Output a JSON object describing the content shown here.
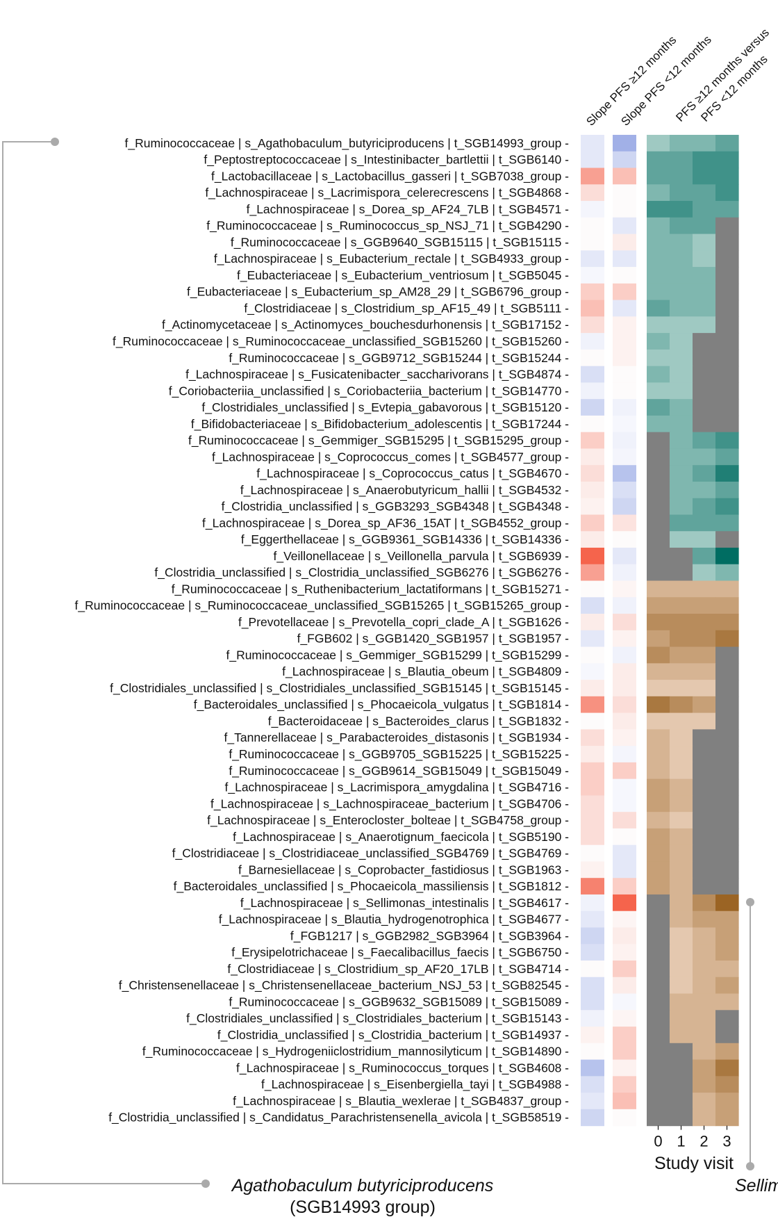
{
  "chart_data": {
    "type": "heatmap",
    "column_headers": {
      "slope_high": "Slope PFS ≥12 months",
      "slope_low": "Slope PFS <12 months",
      "comparison_line1": "PFS ≥12 months versus",
      "comparison_line2": "PFS <12 months"
    },
    "xlabel": "Study visit",
    "visits": [
      "0",
      "1",
      "2",
      "3"
    ],
    "missing_color": "#808080",
    "callouts": {
      "left_species": "Agathobaculum butyriciproducens",
      "left_group": "(SGB14993 group)",
      "right_species": "Sellimonas intestinalis"
    },
    "rows": [
      {
        "label": "f_Ruminococcaceae | s_Agathobaculum_butyriciproducens | t_SGB14993_group",
        "slope_high": -1,
        "slope_low": -4,
        "visits": [
          -2,
          -3,
          -3,
          -4
        ]
      },
      {
        "label": "f_Peptostreptococcaceae | s_Intestinibacter_bartlettii | t_SGB6140",
        "slope_high": -1,
        "slope_low": -2,
        "visits": [
          -4,
          -4,
          -5,
          -5
        ]
      },
      {
        "label": "f_Lactobacillaceae | s_Lactobacillus_gasseri | t_SGB7038_group",
        "slope_high": 3,
        "slope_low": 2,
        "visits": [
          -4,
          -4,
          -5,
          -5
        ]
      },
      {
        "label": "f_Lachnospiraceae | s_Lacrimispora_celerecrescens | t_SGB4868",
        "slope_high": 1,
        "slope_low": 0,
        "visits": [
          -3,
          -4,
          -4,
          -5
        ]
      },
      {
        "label": "f_Lachnospiraceae | s_Dorea_sp_AF24_7LB | t_SGB4571",
        "slope_high": -0.3,
        "slope_low": 0,
        "visits": [
          -5,
          -5,
          -4,
          -4
        ]
      },
      {
        "label": "f_Ruminococcaceae | s_Ruminococcus_sp_NSJ_71 | t_SGB4290",
        "slope_high": 0,
        "slope_low": -1,
        "visits": [
          -3,
          -4,
          -4,
          null
        ]
      },
      {
        "label": "f_Ruminococcaceae | s_GGB9640_SGB15115 | t_SGB15115",
        "slope_high": 0,
        "slope_low": 0.5,
        "visits": [
          -3,
          -3,
          -2,
          null
        ]
      },
      {
        "label": "f_Lachnospiraceae | s_Eubacterium_rectale | t_SGB4933_group",
        "slope_high": -1,
        "slope_low": -1,
        "visits": [
          -3,
          -3,
          -2,
          null
        ]
      },
      {
        "label": "f_Eubacteriaceae | s_Eubacterium_ventriosum | t_SGB5045",
        "slope_high": -0.2,
        "slope_low": 0,
        "visits": [
          -3,
          -3,
          -3,
          null
        ]
      },
      {
        "label": "f_Eubacteriaceae | s_Eubacterium_sp_AM28_29 | t_SGB6796_group",
        "slope_high": 1.5,
        "slope_low": 1.5,
        "visits": [
          -3,
          -3,
          -3,
          null
        ]
      },
      {
        "label": "f_Clostridiaceae | s_Clostridium_sp_AF15_49 | t_SGB5111",
        "slope_high": 2,
        "slope_low": -1,
        "visits": [
          -4,
          -3,
          -3,
          null
        ]
      },
      {
        "label": "f_Actinomycetaceae | s_Actinomyces_bouchesdurhonensis | t_SGB17152",
        "slope_high": 1,
        "slope_low": 0.3,
        "visits": [
          -2,
          -2,
          -2,
          null
        ]
      },
      {
        "label": "f_Ruminococcaceae | s_Ruminococcaceae_unclassified_SGB15260 | t_SGB15260",
        "slope_high": -0.5,
        "slope_low": 0.3,
        "visits": [
          -3,
          -2,
          null,
          null
        ]
      },
      {
        "label": "f_Ruminococcaceae | s_GGB9712_SGB15244 | t_SGB15244",
        "slope_high": 0,
        "slope_low": 0.3,
        "visits": [
          -2,
          -2,
          null,
          null
        ]
      },
      {
        "label": "f_Lachnospiraceae | s_Fusicatenibacter_saccharivorans | t_SGB4874",
        "slope_high": -1.5,
        "slope_low": 0,
        "visits": [
          -3,
          -2,
          null,
          null
        ]
      },
      {
        "label": "f_Coriobacteriia_unclassified | s_Coriobacteriia_bacterium | t_SGB14770",
        "slope_high": -0.5,
        "slope_low": 0,
        "visits": [
          -2,
          -2,
          null,
          null
        ]
      },
      {
        "label": "f_Clostridiales_unclassified | s_Evtepia_gabavorous | t_SGB15120",
        "slope_high": -2,
        "slope_low": -0.5,
        "visits": [
          -4,
          -3,
          null,
          null
        ]
      },
      {
        "label": "f_Bifidobacteriaceae | s_Bifidobacterium_adolescentis | t_SGB17244",
        "slope_high": 0,
        "slope_low": -0.2,
        "visits": [
          -3,
          -3,
          null,
          null
        ]
      },
      {
        "label": "f_Ruminococcaceae | s_Gemmiger_SGB15295 | t_SGB15295_group",
        "slope_high": 1.5,
        "slope_low": -0.5,
        "visits": [
          null,
          -3,
          -4,
          -5
        ]
      },
      {
        "label": "f_Lachnospiraceae | s_Coprococcus_comes | t_SGB4577_group",
        "slope_high": 0.5,
        "slope_low": -0.3,
        "visits": [
          null,
          -3,
          -3,
          -4
        ]
      },
      {
        "label": "f_Lachnospiraceae | s_Coprococcus_catus | t_SGB4670",
        "slope_high": 1,
        "slope_low": -3,
        "visits": [
          null,
          -3,
          -4,
          -6
        ]
      },
      {
        "label": "f_Lachnospiraceae | s_Anaerobutyricum_hallii | t_SGB4532",
        "slope_high": 0.5,
        "slope_low": -1.5,
        "visits": [
          null,
          -3,
          -3,
          -4
        ]
      },
      {
        "label": "f_Clostridia_unclassified | s_GGB3293_SGB4348 | t_SGB4348",
        "slope_high": 0.3,
        "slope_low": -2,
        "visits": [
          null,
          -3,
          -4,
          -5
        ]
      },
      {
        "label": "f_Lachnospiraceae | s_Dorea_sp_AF36_15AT | t_SGB4552_group",
        "slope_high": 1.5,
        "slope_low": 0.8,
        "visits": [
          null,
          -4,
          -4,
          -4
        ]
      },
      {
        "label": "f_Eggerthellaceae | s_GGB9361_SGB14336 | t_SGB14336",
        "slope_high": 0.5,
        "slope_low": 0,
        "visits": [
          null,
          -2,
          -2,
          null
        ]
      },
      {
        "label": "f_Veillonellaceae | s_Veillonella_parvula | t_SGB6939",
        "slope_high": 5,
        "slope_low": -1,
        "visits": [
          null,
          null,
          -4,
          -7
        ]
      },
      {
        "label": "f_Clostridia_unclassified | s_Clostridia_unclassified_SGB6276 | t_SGB6276",
        "slope_high": 3,
        "slope_low": -0.5,
        "visits": [
          null,
          null,
          -2,
          -3
        ]
      },
      {
        "label": "f_Ruminococcaceae | s_Ruthenibacterium_lactatiformans | t_SGB15271",
        "slope_high": 0,
        "slope_low": 0.2,
        "visits": [
          2,
          2,
          2,
          2
        ]
      },
      {
        "label": "f_Ruminococcaceae | s_Ruminococcaceae_unclassified_SGB15265 | t_SGB15265_group",
        "slope_high": -1.5,
        "slope_low": -0.5,
        "visits": [
          3,
          3,
          3,
          3
        ]
      },
      {
        "label": "f_Prevotellaceae | s_Prevotella_copri_clade_A | t_SGB1626",
        "slope_high": 0.5,
        "slope_low": 1,
        "visits": [
          4,
          4,
          4,
          4
        ]
      },
      {
        "label": "f_FGB602 | s_GGB1420_SGB1957 | t_SGB1957",
        "slope_high": -1,
        "slope_low": 0.3,
        "visits": [
          3,
          4,
          4,
          5
        ]
      },
      {
        "label": "f_Ruminococcaceae | s_Gemmiger_SGB15299 | t_SGB15299",
        "slope_high": 0,
        "slope_low": -0.5,
        "visits": [
          4,
          3,
          3,
          null
        ]
      },
      {
        "label": "f_Lachnospiraceae | s_Blautia_obeum | t_SGB4809",
        "slope_high": -0.2,
        "slope_low": 0.5,
        "visits": [
          2,
          2,
          2,
          null
        ]
      },
      {
        "label": "f_Clostridiales_unclassified | s_Clostridiales_unclassified_SGB15145 | t_SGB15145",
        "slope_high": 0.5,
        "slope_low": 0.5,
        "visits": [
          1,
          1,
          1,
          null
        ]
      },
      {
        "label": "f_Bacteroidales_unclassified | s_Phocaeicola_vulgatus | t_SGB1814",
        "slope_high": 3.5,
        "slope_low": 1,
        "visits": [
          5,
          4,
          3,
          null
        ]
      },
      {
        "label": "f_Bacteroidaceae | s_Bacteroides_clarus | t_SGB1832",
        "slope_high": 0,
        "slope_low": 0.5,
        "visits": [
          1,
          1,
          1,
          null
        ]
      },
      {
        "label": "f_Tannerellaceae | s_Parabacteroides_distasonis | t_SGB1934",
        "slope_high": 1,
        "slope_low": 0.3,
        "visits": [
          2,
          1,
          null,
          null
        ]
      },
      {
        "label": "f_Ruminococcaceae | s_GGB9705_SGB15225 | t_SGB15225",
        "slope_high": 0.5,
        "slope_low": -0.3,
        "visits": [
          2,
          1,
          null,
          null
        ]
      },
      {
        "label": "f_Ruminococcaceae | s_GGB9614_SGB15049 | t_SGB15049",
        "slope_high": 1.5,
        "slope_low": 1.5,
        "visits": [
          2,
          1,
          null,
          null
        ]
      },
      {
        "label": "f_Lachnospiraceae | s_Lacrimispora_amygdalina | t_SGB4716",
        "slope_high": 1.5,
        "slope_low": -0.2,
        "visits": [
          3,
          2,
          null,
          null
        ]
      },
      {
        "label": "f_Lachnospiraceae | s_Lachnospiraceae_bacterium | t_SGB4706",
        "slope_high": 1,
        "slope_low": -0.2,
        "visits": [
          3,
          2,
          null,
          null
        ]
      },
      {
        "label": "f_Lachnospiraceae | s_Enterocloster_bolteae | t_SGB4758_group",
        "slope_high": 1,
        "slope_low": 1,
        "visits": [
          2,
          1,
          null,
          null
        ]
      },
      {
        "label": "f_Lachnospiraceae | s_Anaerotignum_faecicola | t_SGB5190",
        "slope_high": 1,
        "slope_low": 0,
        "visits": [
          3,
          2,
          null,
          null
        ]
      },
      {
        "label": "f_Clostridiaceae | s_Clostridiaceae_unclassified_SGB4769 | t_SGB4769",
        "slope_high": 0,
        "slope_low": -1,
        "visits": [
          3,
          2,
          null,
          null
        ]
      },
      {
        "label": "f_Barnesiellaceae | s_Coprobacter_fastidiosus | t_SGB1963",
        "slope_high": 0.3,
        "slope_low": -1,
        "visits": [
          3,
          2,
          null,
          null
        ]
      },
      {
        "label": "f_Bacteroidales_unclassified | s_Phocaeicola_massiliensis | t_SGB1812",
        "slope_high": 4,
        "slope_low": 1.5,
        "visits": [
          3,
          2,
          null,
          null
        ]
      },
      {
        "label": "f_Lachnospiraceae | s_Sellimonas_intestinalis | t_SGB4617",
        "slope_high": -0.5,
        "slope_low": 5,
        "visits": [
          null,
          2,
          4,
          6
        ]
      },
      {
        "label": "f_Lachnospiraceae | s_Blautia_hydrogenotrophica | t_SGB4677",
        "slope_high": -1,
        "slope_low": 0.2,
        "visits": [
          null,
          2,
          3,
          3
        ]
      },
      {
        "label": "f_FGB1217 | s_GGB2982_SGB3964 | t_SGB3964",
        "slope_high": -2,
        "slope_low": 0.5,
        "visits": [
          null,
          1,
          2,
          3
        ]
      },
      {
        "label": "f_Erysipelotrichaceae | s_Faecalibacillus_faecis | t_SGB6750",
        "slope_high": -1.5,
        "slope_low": 0.3,
        "visits": [
          null,
          1,
          2,
          3
        ]
      },
      {
        "label": "f_Clostridiaceae | s_Clostridium_sp_AF20_17LB | t_SGB4714",
        "slope_high": 0,
        "slope_low": 1.5,
        "visits": [
          null,
          1,
          2,
          2
        ]
      },
      {
        "label": "f_Christensenellaceae | s_Christensenellaceae_bacterium_NSJ_53 | t_SGB82545",
        "slope_high": -1.5,
        "slope_low": 0.5,
        "visits": [
          null,
          1,
          2,
          3
        ]
      },
      {
        "label": "f_Ruminococcaceae | s_GGB9632_SGB15089 | t_SGB15089",
        "slope_high": -1.5,
        "slope_low": -0.2,
        "visits": [
          null,
          2,
          2,
          2
        ]
      },
      {
        "label": "f_Clostridiales_unclassified | s_Clostridiales_bacterium | t_SGB15143",
        "slope_high": -0.5,
        "slope_low": 0.2,
        "visits": [
          null,
          2,
          2,
          null
        ]
      },
      {
        "label": "f_Clostridia_unclassified | s_Clostridia_bacterium | t_SGB14937",
        "slope_high": 0.3,
        "slope_low": 1.5,
        "visits": [
          null,
          2,
          2,
          null
        ]
      },
      {
        "label": "f_Ruminococcaceae | s_Hydrogeniiclostridium_mannosilyticum | t_SGB14890",
        "slope_high": 0,
        "slope_low": 1.5,
        "visits": [
          null,
          null,
          2,
          3
        ]
      },
      {
        "label": "f_Lachnospiraceae | s_Ruminococcus_torques | t_SGB4608",
        "slope_high": -3,
        "slope_low": 0.3,
        "visits": [
          null,
          null,
          3,
          5
        ]
      },
      {
        "label": "f_Lachnospiraceae | s_Eisenbergiella_tayi | t_SGB4988",
        "slope_high": -1.5,
        "slope_low": 1.5,
        "visits": [
          null,
          null,
          3,
          4
        ]
      },
      {
        "label": "f_Lachnospiraceae | s_Blautia_wexlerae | t_SGB4837_group",
        "slope_high": -1,
        "slope_low": 2,
        "visits": [
          null,
          null,
          2,
          3
        ]
      },
      {
        "label": "f_Clostridia_unclassified | s_Candidatus_Parachristensenella_avicola | t_SGB58519",
        "slope_high": -2,
        "slope_low": 0,
        "visits": [
          null,
          null,
          2,
          3
        ]
      }
    ]
  }
}
